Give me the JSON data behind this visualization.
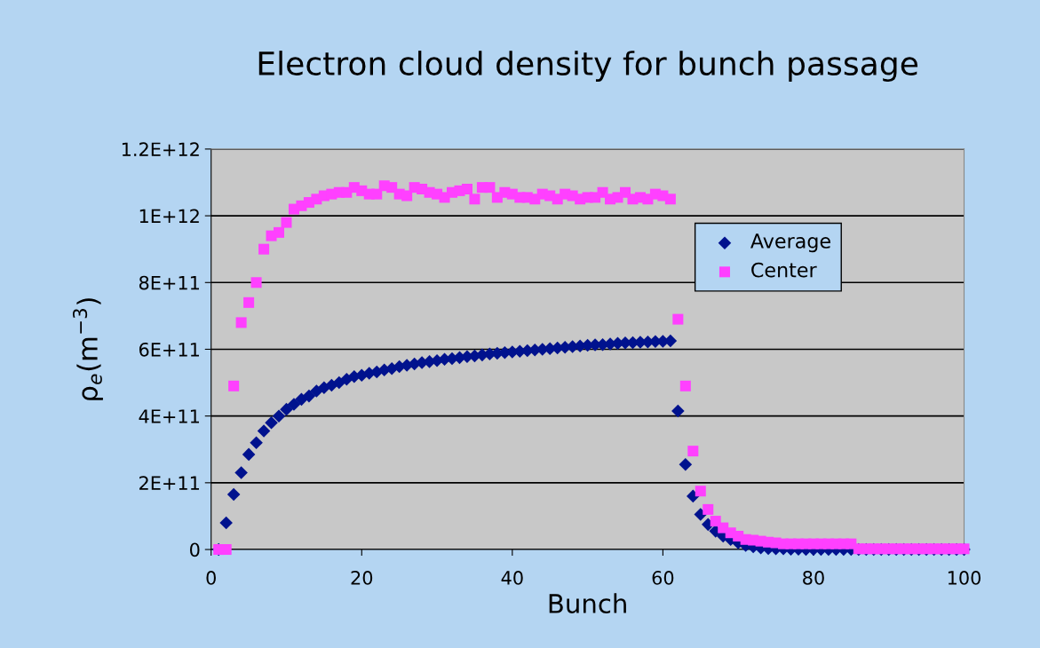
{
  "chart_data": {
    "type": "scatter",
    "title": "Electron cloud density for bunch passage",
    "xlabel": "Bunch",
    "ylabel": "ρ$_{e}$(m$^{−3}$)",
    "x": [
      1,
      2,
      3,
      4,
      5,
      6,
      7,
      8,
      9,
      10,
      11,
      12,
      13,
      14,
      15,
      16,
      17,
      18,
      19,
      20,
      21,
      22,
      23,
      24,
      25,
      26,
      27,
      28,
      29,
      30,
      31,
      32,
      33,
      34,
      35,
      36,
      37,
      38,
      39,
      40,
      41,
      42,
      43,
      44,
      45,
      46,
      47,
      48,
      49,
      50,
      51,
      52,
      53,
      54,
      55,
      56,
      57,
      58,
      59,
      60,
      61,
      62,
      63,
      64,
      65,
      66,
      67,
      68,
      69,
      70,
      71,
      72,
      73,
      74,
      75,
      76,
      77,
      78,
      79,
      80,
      81,
      82,
      83,
      84,
      85,
      86,
      87,
      88,
      89,
      90,
      91,
      92,
      93,
      94,
      95,
      96,
      97,
      98,
      99,
      100
    ],
    "series": [
      {
        "name": "Average",
        "color": "#00128e",
        "marker": "diamond",
        "values": [
          0,
          80000000000.0,
          165000000000.0,
          230000000000.0,
          285000000000.0,
          320000000000.0,
          355000000000.0,
          380000000000.0,
          400000000000.0,
          420000000000.0,
          435000000000.0,
          450000000000.0,
          460000000000.0,
          475000000000.0,
          485000000000.0,
          492000000000.0,
          500000000000.0,
          510000000000.0,
          518000000000.0,
          522000000000.0,
          528000000000.0,
          532000000000.0,
          538000000000.0,
          542000000000.0,
          548000000000.0,
          552000000000.0,
          556000000000.0,
          560000000000.0,
          563000000000.0,
          566000000000.0,
          570000000000.0,
          572000000000.0,
          575000000000.0,
          578000000000.0,
          580000000000.0,
          583000000000.0,
          586000000000.0,
          588000000000.0,
          590000000000.0,
          592000000000.0,
          594000000000.0,
          596000000000.0,
          598000000000.0,
          600000000000.0,
          602000000000.0,
          604000000000.0,
          606000000000.0,
          608000000000.0,
          610000000000.0,
          612000000000.0,
          613000000000.0,
          614000000000.0,
          616000000000.0,
          618000000000.0,
          619000000000.0,
          620000000000.0,
          621000000000.0,
          622000000000.0,
          623000000000.0,
          624000000000.0,
          625000000000.0,
          415000000000.0,
          255000000000.0,
          160000000000.0,
          105000000000.0,
          75000000000.0,
          55000000000.0,
          40000000000.0,
          30000000000.0,
          20000000000.0,
          12000000000.0,
          8000000000.0,
          5000000000.0,
          3000000000.0,
          2000000000.0,
          2000000000.0,
          1000000000.0,
          1000000000.0,
          0,
          0,
          0,
          0,
          0,
          0,
          0,
          0,
          0,
          0,
          0,
          0,
          0,
          0,
          0,
          0,
          0,
          0,
          0,
          0,
          0,
          0
        ]
      },
      {
        "name": "Center",
        "color": "#ff40ff",
        "marker": "square",
        "values": [
          0,
          0,
          490000000000.0,
          680000000000.0,
          740000000000.0,
          800000000000.0,
          900000000000.0,
          940000000000.0,
          950000000000.0,
          980000000000.0,
          1020000000000.0,
          1030000000000.0,
          1040000000000.0,
          1050000000000.0,
          1060000000000.0,
          1065000000000.0,
          1070000000000.0,
          1070000000000.0,
          1085000000000.0,
          1075000000000.0,
          1065000000000.0,
          1065000000000.0,
          1090000000000.0,
          1085000000000.0,
          1065000000000.0,
          1060000000000.0,
          1085000000000.0,
          1080000000000.0,
          1070000000000.0,
          1065000000000.0,
          1055000000000.0,
          1070000000000.0,
          1075000000000.0,
          1080000000000.0,
          1050000000000.0,
          1085000000000.0,
          1085000000000.0,
          1055000000000.0,
          1070000000000.0,
          1065000000000.0,
          1055000000000.0,
          1055000000000.0,
          1050000000000.0,
          1065000000000.0,
          1060000000000.0,
          1050000000000.0,
          1065000000000.0,
          1060000000000.0,
          1050000000000.0,
          1055000000000.0,
          1055000000000.0,
          1070000000000.0,
          1050000000000.0,
          1055000000000.0,
          1070000000000.0,
          1050000000000.0,
          1055000000000.0,
          1050000000000.0,
          1065000000000.0,
          1060000000000.0,
          1050000000000.0,
          690000000000.0,
          490000000000.0,
          295000000000.0,
          175000000000.0,
          120000000000.0,
          85000000000.0,
          65000000000.0,
          50000000000.0,
          40000000000.0,
          30000000000.0,
          28000000000.0,
          25000000000.0,
          22000000000.0,
          20000000000.0,
          17000000000.0,
          17000000000.0,
          17000000000.0,
          17000000000.0,
          17000000000.0,
          17000000000.0,
          17000000000.0,
          17000000000.0,
          17000000000.0,
          17000000000.0,
          2000000000.0,
          2000000000.0,
          2000000000.0,
          2000000000.0,
          2000000000.0,
          2000000000.0,
          2000000000.0,
          2000000000.0,
          2000000000.0,
          2000000000.0,
          2000000000.0,
          2000000000.0,
          2000000000.0,
          2000000000.0,
          2000000000.0
        ]
      }
    ],
    "xlim": [
      0,
      100
    ],
    "xticks": [
      0,
      20,
      40,
      60,
      80,
      100
    ],
    "ylim": [
      0,
      1200000000000.0
    ],
    "yticks": [
      {
        "value": 0,
        "label": "0"
      },
      {
        "value": 200000000000.0,
        "label": "2E+11"
      },
      {
        "value": 400000000000.0,
        "label": "4E+11"
      },
      {
        "value": 600000000000.0,
        "label": "6E+11"
      },
      {
        "value": 800000000000.0,
        "label": "8E+11"
      },
      {
        "value": 1000000000000.0,
        "label": "1E+12"
      },
      {
        "value": 1200000000000.0,
        "label": "1.2E+12"
      }
    ],
    "grid": "y",
    "legend": "right"
  }
}
